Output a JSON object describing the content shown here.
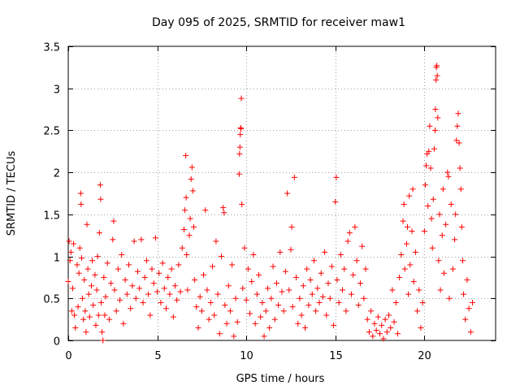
{
  "chart_data": {
    "type": "scatter",
    "title": "Day 095 of 2025, SRMTID for receiver maw1",
    "xlabel": "GPS time / hours",
    "ylabel": "SRMTID / TECUs",
    "xlim": [
      0,
      24
    ],
    "ylim": [
      0,
      3.5
    ],
    "xticks": [
      0,
      5,
      10,
      15,
      20
    ],
    "xtick_labels": [
      "0",
      "5",
      "10",
      "15",
      "20"
    ],
    "yticks": [
      0,
      0.5,
      1,
      1.5,
      2,
      2.5,
      3,
      3.5
    ],
    "ytick_labels": [
      "0",
      "0.5",
      "1",
      "1.5",
      "2",
      "2.5",
      "3",
      "3.5"
    ],
    "grid": true,
    "marker": "+",
    "color": "#ff0000",
    "series": [
      {
        "name": "SRMTID",
        "points": [
          [
            0.0,
            0.7
          ],
          [
            0.05,
            1.18
          ],
          [
            0.1,
            0.95
          ],
          [
            0.15,
            1.05
          ],
          [
            0.2,
            0.35
          ],
          [
            0.25,
            0.62
          ],
          [
            0.3,
            1.15
          ],
          [
            0.35,
            0.3
          ],
          [
            0.4,
            0.15
          ],
          [
            0.5,
            0.9
          ],
          [
            0.55,
            0.4
          ],
          [
            0.6,
            0.8
          ],
          [
            0.65,
            1.1
          ],
          [
            0.7,
            1.75
          ],
          [
            0.72,
            1.62
          ],
          [
            0.75,
            0.98
          ],
          [
            0.8,
            0.5
          ],
          [
            0.85,
            0.25
          ],
          [
            0.9,
            0.72
          ],
          [
            0.95,
            0.35
          ],
          [
            1.0,
            0.1
          ],
          [
            1.05,
            1.38
          ],
          [
            1.1,
            0.85
          ],
          [
            1.15,
            0.55
          ],
          [
            1.2,
            0.28
          ],
          [
            1.3,
            0.65
          ],
          [
            1.35,
            0.95
          ],
          [
            1.4,
            0.42
          ],
          [
            1.5,
            0.78
          ],
          [
            1.55,
            0.18
          ],
          [
            1.6,
            0.6
          ],
          [
            1.65,
            1.0
          ],
          [
            1.7,
            0.3
          ],
          [
            1.75,
            1.28
          ],
          [
            1.8,
            1.85
          ],
          [
            1.82,
            1.68
          ],
          [
            1.85,
            0.45
          ],
          [
            1.9,
            0.1
          ],
          [
            1.95,
            0.0
          ],
          [
            2.0,
            0.75
          ],
          [
            2.05,
            0.3
          ],
          [
            2.1,
            0.52
          ],
          [
            2.2,
            0.92
          ],
          [
            2.3,
            0.25
          ],
          [
            2.4,
            0.68
          ],
          [
            2.5,
            1.2
          ],
          [
            2.55,
            1.42
          ],
          [
            2.6,
            0.6
          ],
          [
            2.7,
            0.35
          ],
          [
            2.8,
            0.85
          ],
          [
            2.9,
            0.48
          ],
          [
            3.0,
            1.02
          ],
          [
            3.1,
            0.2
          ],
          [
            3.2,
            0.72
          ],
          [
            3.3,
            0.55
          ],
          [
            3.4,
            0.9
          ],
          [
            3.5,
            0.38
          ],
          [
            3.6,
            0.65
          ],
          [
            3.7,
            1.18
          ],
          [
            3.8,
            0.5
          ],
          [
            3.9,
            0.82
          ],
          [
            4.0,
            0.62
          ],
          [
            4.1,
            1.2
          ],
          [
            4.2,
            0.45
          ],
          [
            4.3,
            0.75
          ],
          [
            4.4,
            0.95
          ],
          [
            4.5,
            0.55
          ],
          [
            4.6,
            0.3
          ],
          [
            4.7,
            0.85
          ],
          [
            4.8,
            0.68
          ],
          [
            4.9,
            1.22
          ],
          [
            5.0,
            0.58
          ],
          [
            5.1,
            0.8
          ],
          [
            5.2,
            0.45
          ],
          [
            5.3,
            0.92
          ],
          [
            5.4,
            0.62
          ],
          [
            5.5,
            0.38
          ],
          [
            5.6,
            0.75
          ],
          [
            5.7,
            0.55
          ],
          [
            5.8,
            0.85
          ],
          [
            5.9,
            0.28
          ],
          [
            6.0,
            0.65
          ],
          [
            6.1,
            0.48
          ],
          [
            6.2,
            0.9
          ],
          [
            6.3,
            0.58
          ],
          [
            6.4,
            1.1
          ],
          [
            6.5,
            1.32
          ],
          [
            6.55,
            1.55
          ],
          [
            6.6,
            2.2
          ],
          [
            6.62,
            1.7
          ],
          [
            6.65,
            1.02
          ],
          [
            6.7,
            0.6
          ],
          [
            6.8,
            1.25
          ],
          [
            6.85,
            1.45
          ],
          [
            6.9,
            1.92
          ],
          [
            6.95,
            2.06
          ],
          [
            7.0,
            1.78
          ],
          [
            7.05,
            1.35
          ],
          [
            7.1,
            0.72
          ],
          [
            7.2,
            0.4
          ],
          [
            7.3,
            0.15
          ],
          [
            7.4,
            0.52
          ],
          [
            7.5,
            0.35
          ],
          [
            7.6,
            0.78
          ],
          [
            7.7,
            1.55
          ],
          [
            7.8,
            0.6
          ],
          [
            7.9,
            0.25
          ],
          [
            8.0,
            0.45
          ],
          [
            8.1,
            0.88
          ],
          [
            8.2,
            0.3
          ],
          [
            8.3,
            1.18
          ],
          [
            8.4,
            0.55
          ],
          [
            8.5,
            0.08
          ],
          [
            8.6,
            1.0
          ],
          [
            8.7,
            1.58
          ],
          [
            8.75,
            1.52
          ],
          [
            8.8,
            0.42
          ],
          [
            8.9,
            0.2
          ],
          [
            9.0,
            0.65
          ],
          [
            9.1,
            0.35
          ],
          [
            9.2,
            0.9
          ],
          [
            9.3,
            0.05
          ],
          [
            9.4,
            0.5
          ],
          [
            9.5,
            0.22
          ],
          [
            9.6,
            1.98
          ],
          [
            9.62,
            2.22
          ],
          [
            9.64,
            2.3
          ],
          [
            9.66,
            2.45
          ],
          [
            9.68,
            2.53
          ],
          [
            9.7,
            2.52
          ],
          [
            9.72,
            2.88
          ],
          [
            9.75,
            1.62
          ],
          [
            9.8,
            0.62
          ],
          [
            9.9,
            1.1
          ],
          [
            10.0,
            0.48
          ],
          [
            10.1,
            0.85
          ],
          [
            10.2,
            0.32
          ],
          [
            10.3,
            0.7
          ],
          [
            10.4,
            1.02
          ],
          [
            10.5,
            0.2
          ],
          [
            10.6,
            0.55
          ],
          [
            10.7,
            0.78
          ],
          [
            10.8,
            0.28
          ],
          [
            10.9,
            0.45
          ],
          [
            11.0,
            0.05
          ],
          [
            11.1,
            0.35
          ],
          [
            11.2,
            0.62
          ],
          [
            11.3,
            0.15
          ],
          [
            11.4,
            0.5
          ],
          [
            11.5,
            0.88
          ],
          [
            11.6,
            0.25
          ],
          [
            11.7,
            0.68
          ],
          [
            11.8,
            0.42
          ],
          [
            11.9,
            1.05
          ],
          [
            12.0,
            0.58
          ],
          [
            12.1,
            0.35
          ],
          [
            12.2,
            0.82
          ],
          [
            12.3,
            1.75
          ],
          [
            12.4,
            0.6
          ],
          [
            12.5,
            1.08
          ],
          [
            12.55,
            1.35
          ],
          [
            12.6,
            0.4
          ],
          [
            12.7,
            1.94
          ],
          [
            12.8,
            0.75
          ],
          [
            12.9,
            0.2
          ],
          [
            13.0,
            0.5
          ],
          [
            13.1,
            0.3
          ],
          [
            13.2,
            0.65
          ],
          [
            13.3,
            0.15
          ],
          [
            13.4,
            0.85
          ],
          [
            13.5,
            0.42
          ],
          [
            13.6,
            0.72
          ],
          [
            13.7,
            0.55
          ],
          [
            13.8,
            0.95
          ],
          [
            13.9,
            0.35
          ],
          [
            14.0,
            0.62
          ],
          [
            14.1,
            0.45
          ],
          [
            14.2,
            0.8
          ],
          [
            14.3,
            0.52
          ],
          [
            14.4,
            1.05
          ],
          [
            14.5,
            0.3
          ],
          [
            14.6,
            0.68
          ],
          [
            14.7,
            0.5
          ],
          [
            14.8,
            0.88
          ],
          [
            14.9,
            0.18
          ],
          [
            15.0,
            1.65
          ],
          [
            15.05,
            1.94
          ],
          [
            15.1,
            0.72
          ],
          [
            15.2,
            0.45
          ],
          [
            15.3,
            1.02
          ],
          [
            15.4,
            0.6
          ],
          [
            15.5,
            0.85
          ],
          [
            15.6,
            0.35
          ],
          [
            15.7,
            1.18
          ],
          [
            15.8,
            1.28
          ],
          [
            15.9,
            0.55
          ],
          [
            16.0,
            0.78
          ],
          [
            16.1,
            1.35
          ],
          [
            16.2,
            0.95
          ],
          [
            16.3,
            0.42
          ],
          [
            16.4,
            0.68
          ],
          [
            16.5,
            1.12
          ],
          [
            16.6,
            0.5
          ],
          [
            16.7,
            0.85
          ],
          [
            16.8,
            0.25
          ],
          [
            16.9,
            0.1
          ],
          [
            17.0,
            0.35
          ],
          [
            17.1,
            0.05
          ],
          [
            17.2,
            0.2
          ],
          [
            17.3,
            0.12
          ],
          [
            17.4,
            0.28
          ],
          [
            17.5,
            0.08
          ],
          [
            17.6,
            0.18
          ],
          [
            17.7,
            0.02
          ],
          [
            17.8,
            0.25
          ],
          [
            17.9,
            0.1
          ],
          [
            18.0,
            0.3
          ],
          [
            18.1,
            0.15
          ],
          [
            18.2,
            0.6
          ],
          [
            18.3,
            0.22
          ],
          [
            18.4,
            0.45
          ],
          [
            18.5,
            0.08
          ],
          [
            18.6,
            0.75
          ],
          [
            18.7,
            1.02
          ],
          [
            18.8,
            1.42
          ],
          [
            18.85,
            1.62
          ],
          [
            18.9,
            0.85
          ],
          [
            19.0,
            1.15
          ],
          [
            19.05,
            1.35
          ],
          [
            19.1,
            0.55
          ],
          [
            19.15,
            1.72
          ],
          [
            19.2,
            0.9
          ],
          [
            19.3,
            1.3
          ],
          [
            19.35,
            1.8
          ],
          [
            19.4,
            0.7
          ],
          [
            19.5,
            1.05
          ],
          [
            19.6,
            0.35
          ],
          [
            19.7,
            0.6
          ],
          [
            19.8,
            0.15
          ],
          [
            19.9,
            0.45
          ],
          [
            20.0,
            1.3
          ],
          [
            20.05,
            1.85
          ],
          [
            20.1,
            2.08
          ],
          [
            20.15,
            2.22
          ],
          [
            20.2,
            1.6
          ],
          [
            20.25,
            2.25
          ],
          [
            20.3,
            2.55
          ],
          [
            20.35,
            2.05
          ],
          [
            20.4,
            1.45
          ],
          [
            20.45,
            1.1
          ],
          [
            20.5,
            1.68
          ],
          [
            20.55,
            2.28
          ],
          [
            20.6,
            2.5
          ],
          [
            20.62,
            2.75
          ],
          [
            20.65,
            3.1
          ],
          [
            20.67,
            3.25
          ],
          [
            20.7,
            3.27
          ],
          [
            20.72,
            3.15
          ],
          [
            20.75,
            2.65
          ],
          [
            20.8,
            0.95
          ],
          [
            20.85,
            1.5
          ],
          [
            20.9,
            0.6
          ],
          [
            21.0,
            1.25
          ],
          [
            21.05,
            1.8
          ],
          [
            21.1,
            0.8
          ],
          [
            21.2,
            1.38
          ],
          [
            21.3,
            2.0
          ],
          [
            21.35,
            1.95
          ],
          [
            21.4,
            0.5
          ],
          [
            21.5,
            1.62
          ],
          [
            21.6,
            0.85
          ],
          [
            21.7,
            1.2
          ],
          [
            21.75,
            1.5
          ],
          [
            21.8,
            2.38
          ],
          [
            21.85,
            2.55
          ],
          [
            21.9,
            2.7
          ],
          [
            21.95,
            2.35
          ],
          [
            22.0,
            2.05
          ],
          [
            22.05,
            1.8
          ],
          [
            22.1,
            1.35
          ],
          [
            22.15,
            0.95
          ],
          [
            22.2,
            0.55
          ],
          [
            22.3,
            0.25
          ],
          [
            22.4,
            0.72
          ],
          [
            22.5,
            0.38
          ],
          [
            22.6,
            0.1
          ],
          [
            22.7,
            0.45
          ]
        ]
      }
    ]
  }
}
